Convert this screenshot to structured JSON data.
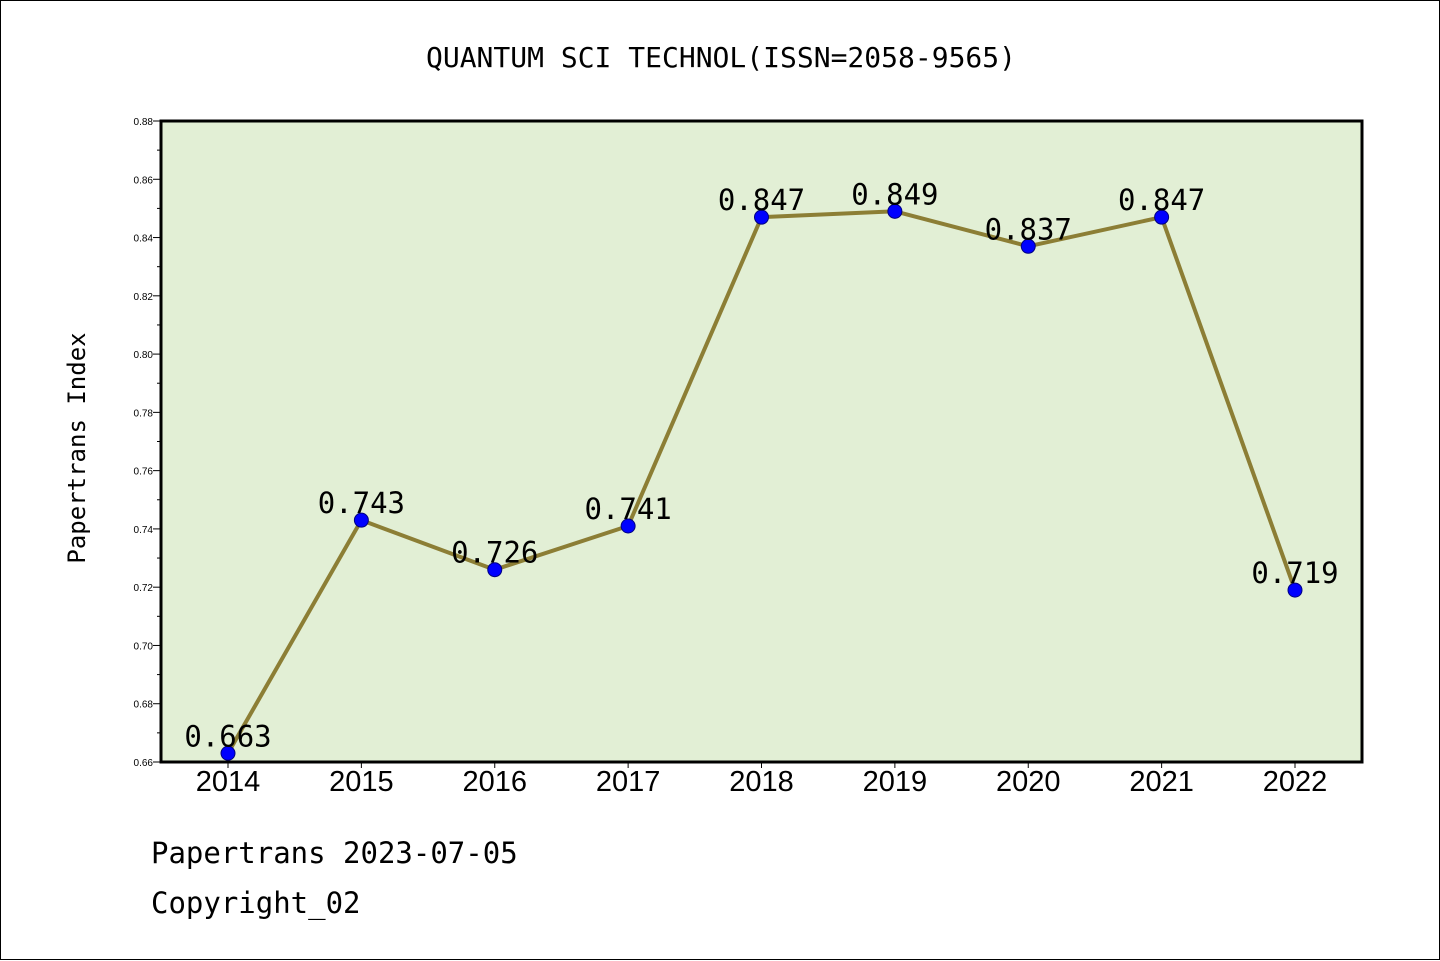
{
  "colors": {
    "plot_background": "#e2efd5",
    "line": "#8c7e35",
    "marker_fill": "#0000ff",
    "marker_edge": "#000080"
  },
  "chart_data": {
    "type": "line",
    "title": "QUANTUM SCI TECHNOL(ISSN=2058-9565)",
    "xlabel": "",
    "ylabel": "Papertrans Index",
    "categories": [
      "2014",
      "2015",
      "2016",
      "2017",
      "2018",
      "2019",
      "2020",
      "2021",
      "2022"
    ],
    "values": [
      0.663,
      0.743,
      0.726,
      0.741,
      0.847,
      0.849,
      0.837,
      0.847,
      0.719
    ],
    "data_labels": [
      "0.663",
      "0.743",
      "0.726",
      "0.741",
      "0.847",
      "0.849",
      "0.837",
      "0.847",
      "0.719"
    ],
    "ylim": [
      0.66,
      0.88
    ],
    "yticks": [
      "0.66",
      "0.68",
      "0.70",
      "0.72",
      "0.74",
      "0.76",
      "0.78",
      "0.80",
      "0.82",
      "0.84",
      "0.86",
      "0.88"
    ],
    "grid": false,
    "legend": "none"
  },
  "footer": {
    "line1": "Papertrans 2023-07-05",
    "line2": "Copyright_02"
  }
}
